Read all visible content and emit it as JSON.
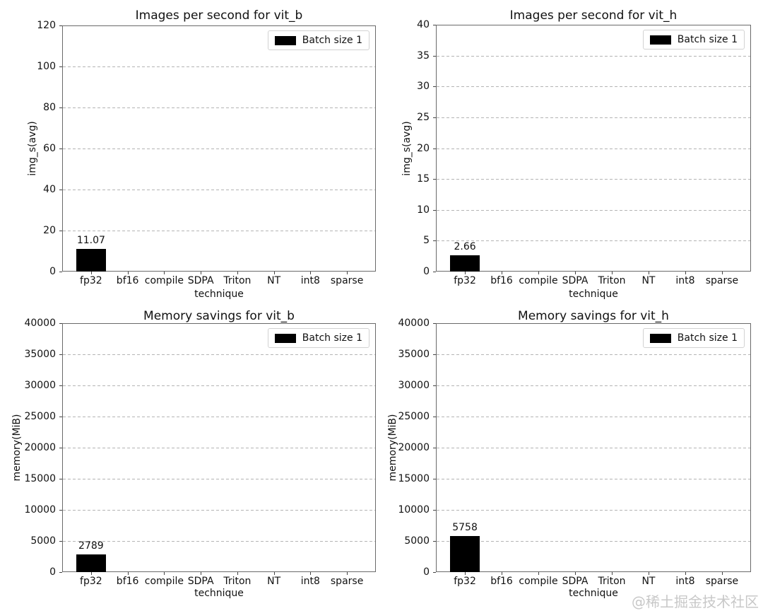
{
  "page": {
    "background": "#ffffff"
  },
  "watermark": {
    "text": "@稀土掘金技术社区",
    "color": "#c8c8c8"
  },
  "colors": {
    "bar": "#000000",
    "grid": "#b4b4b4",
    "spine": "#6a6a6a",
    "text": "#111111",
    "legend_border": "#d2d2d2"
  },
  "chart_data": [
    {
      "type": "bar",
      "title": "Images per second for vit_b",
      "xlabel": "technique",
      "ylabel": "img_s(avg)",
      "categories": [
        "fp32",
        "bf16",
        "compile",
        "SDPA",
        "Triton",
        "NT",
        "int8",
        "sparse"
      ],
      "values": [
        11.07,
        null,
        null,
        null,
        null,
        null,
        null,
        null
      ],
      "bar_value_labels": [
        "11.07",
        null,
        null,
        null,
        null,
        null,
        null,
        null
      ],
      "ylim": [
        0,
        120
      ],
      "yticks": [
        0,
        20,
        40,
        60,
        80,
        100,
        120
      ],
      "legend": [
        "Batch size 1"
      ],
      "legend_position": "upper right",
      "grid": "horizontal dashed",
      "bar_color": "#000000"
    },
    {
      "type": "bar",
      "title": "Images per second for vit_h",
      "xlabel": "technique",
      "ylabel": "img_s(avg)",
      "categories": [
        "fp32",
        "bf16",
        "compile",
        "SDPA",
        "Triton",
        "NT",
        "int8",
        "sparse"
      ],
      "values": [
        2.66,
        null,
        null,
        null,
        null,
        null,
        null,
        null
      ],
      "bar_value_labels": [
        "2.66",
        null,
        null,
        null,
        null,
        null,
        null,
        null
      ],
      "ylim": [
        0,
        40
      ],
      "yticks": [
        0,
        5,
        10,
        15,
        20,
        25,
        30,
        35,
        40
      ],
      "legend": [
        "Batch size 1"
      ],
      "legend_position": "upper right",
      "grid": "horizontal dashed",
      "bar_color": "#000000"
    },
    {
      "type": "bar",
      "title": "Memory savings for vit_b",
      "xlabel": "technique",
      "ylabel": "memory(MiB)",
      "categories": [
        "fp32",
        "bf16",
        "compile",
        "SDPA",
        "Triton",
        "NT",
        "int8",
        "sparse"
      ],
      "values": [
        2789,
        null,
        null,
        null,
        null,
        null,
        null,
        null
      ],
      "bar_value_labels": [
        "2789",
        null,
        null,
        null,
        null,
        null,
        null,
        null
      ],
      "ylim": [
        0,
        40000
      ],
      "yticks": [
        0,
        5000,
        10000,
        15000,
        20000,
        25000,
        30000,
        35000,
        40000
      ],
      "legend": [
        "Batch size 1"
      ],
      "legend_position": "upper right",
      "grid": "horizontal dashed",
      "bar_color": "#000000"
    },
    {
      "type": "bar",
      "title": "Memory savings for vit_h",
      "xlabel": "technique",
      "ylabel": "memory(MiB)",
      "categories": [
        "fp32",
        "bf16",
        "compile",
        "SDPA",
        "Triton",
        "NT",
        "int8",
        "sparse"
      ],
      "values": [
        5758,
        null,
        null,
        null,
        null,
        null,
        null,
        null
      ],
      "bar_value_labels": [
        "5758",
        null,
        null,
        null,
        null,
        null,
        null,
        null
      ],
      "ylim": [
        0,
        40000
      ],
      "yticks": [
        0,
        5000,
        10000,
        15000,
        20000,
        25000,
        30000,
        35000,
        40000
      ],
      "legend": [
        "Batch size 1"
      ],
      "legend_position": "upper right",
      "grid": "horizontal dashed",
      "bar_color": "#000000"
    }
  ]
}
